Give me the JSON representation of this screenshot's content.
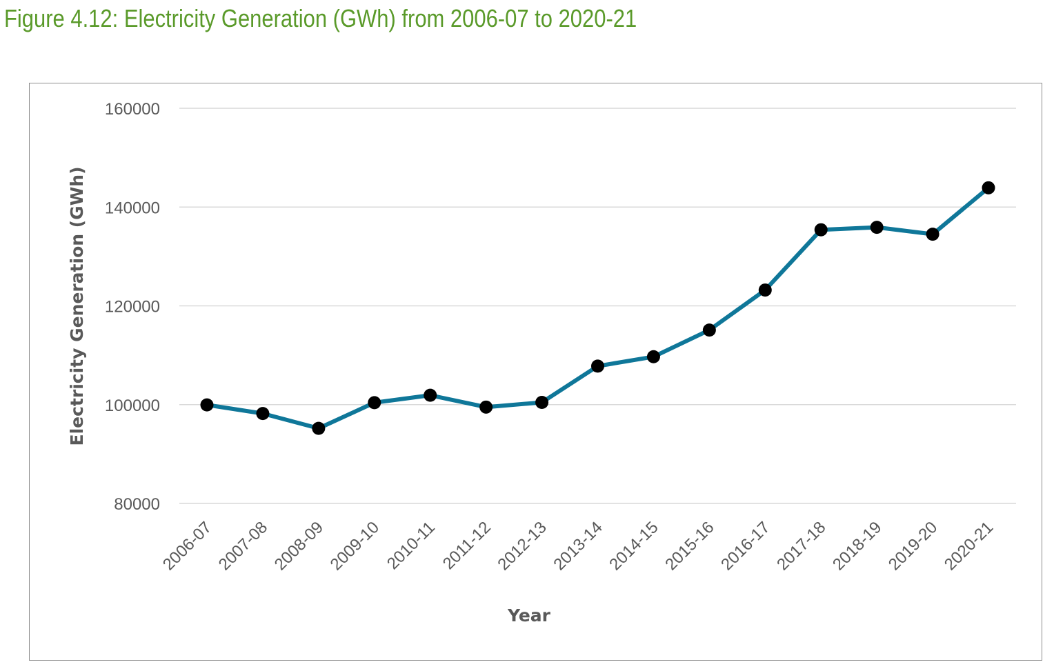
{
  "figure": {
    "title": "Figure 4.12: Electricity Generation (GWh) from 2006-07 to 2020-21"
  },
  "chart_data": {
    "type": "line",
    "xlabel": "Year",
    "ylabel": "Electricity Generation (GWh)",
    "ylim": [
      80000,
      160000
    ],
    "yticks": [
      80000,
      100000,
      120000,
      140000,
      160000
    ],
    "grid": true,
    "categories": [
      "2006-07",
      "2007-08",
      "2008-09",
      "2009-10",
      "2010-11",
      "2011-12",
      "2012-13",
      "2013-14",
      "2014-15",
      "2015-16",
      "2016-17",
      "2017-18",
      "2018-19",
      "2019-20",
      "2020-21"
    ],
    "series": [
      {
        "values": [
          99950,
          98200,
          95200,
          100400,
          101900,
          99500,
          100450,
          107800,
          109700,
          115100,
          123200,
          135400,
          135900,
          134500,
          143900
        ],
        "color": "#0f7799",
        "marker_color": "#000000"
      }
    ]
  }
}
